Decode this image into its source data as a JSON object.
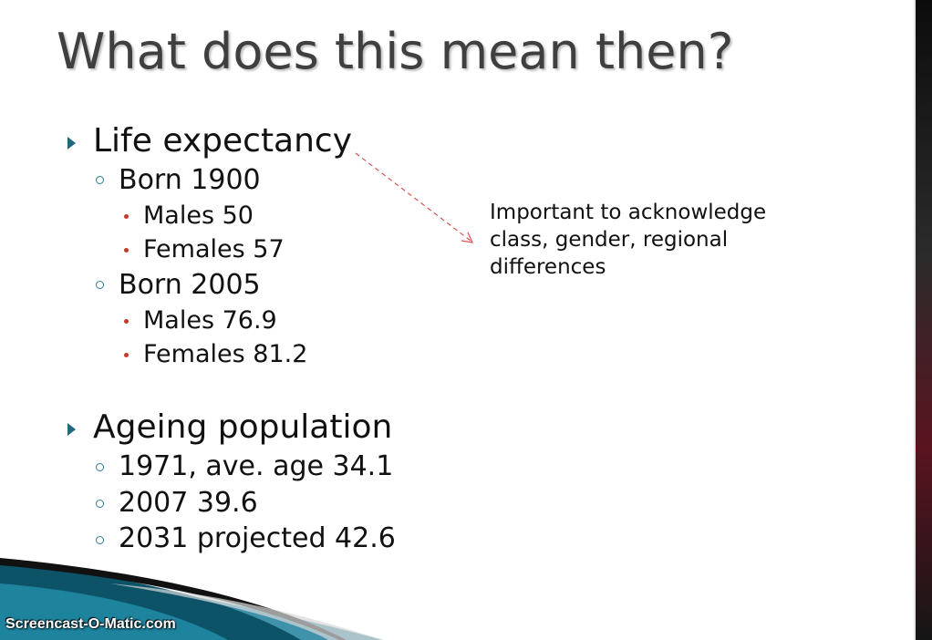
{
  "slide": {
    "title": "What does this mean then?",
    "sections": [
      {
        "heading": "Life expectancy",
        "groups": [
          {
            "label": "Born 1900",
            "items": [
              "Males 50",
              "Females 57"
            ]
          },
          {
            "label": "Born 2005",
            "items": [
              "Males 76.9",
              "Females 81.2"
            ]
          }
        ]
      },
      {
        "heading": "Ageing population",
        "items": [
          "1971, ave. age 34.1",
          "2007 39.6",
          "2031 projected 42.6"
        ]
      }
    ],
    "note": "Important to acknowledge class, gender, regional differences"
  },
  "watermark": "Screencast-O-Matic.com",
  "colors": {
    "title": "#3f3f3f",
    "arrow_bullet": "#1e6a7f",
    "ring_bullet": "#2a7d96",
    "dot_bullet": "#c0392b",
    "arrow_line": "#d9534f",
    "swoosh_dark": "#111111",
    "swoosh_teal": "#1f7f9c"
  },
  "icons": {
    "level1_bullet": "triangle-arrow-icon",
    "level2_bullet": "ring-icon",
    "level3_bullet": "dot-icon",
    "connector": "dashed-arrow-icon"
  }
}
